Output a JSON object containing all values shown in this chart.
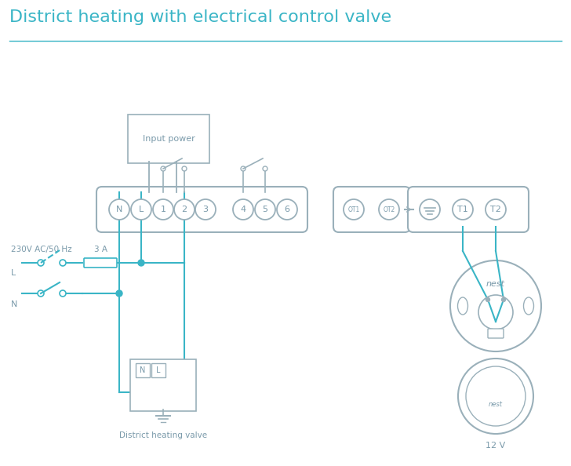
{
  "title": "District heating with electrical control valve",
  "title_color": "#3ab5c6",
  "title_fontsize": 16,
  "bg_color": "#ffffff",
  "wire_color": "#3ab5c6",
  "outline_color": "#9ab0ba",
  "text_color": "#7a9aaa",
  "terminal_labels": [
    "N",
    "L",
    "1",
    "2",
    "3",
    "4",
    "5",
    "6"
  ],
  "terminal_labels2": [
    "OT1",
    "OT2"
  ],
  "terminal_labels3": [
    "T1",
    "T2"
  ],
  "label_230v": "230V AC/50 Hz",
  "label_L": "L",
  "label_N": "N",
  "label_3A": "3 A",
  "label_input_power": "Input power",
  "label_valve": "District heating valve",
  "label_12v": "12 V"
}
